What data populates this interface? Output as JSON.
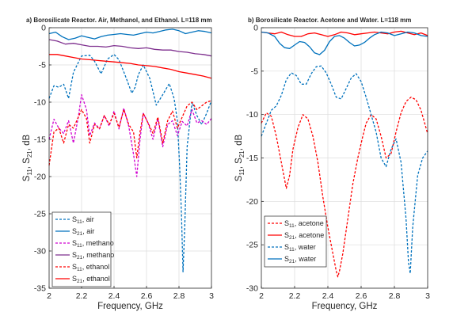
{
  "chart_data": [
    {
      "type": "line",
      "title": "a) Borosilicate Reactor. Air, Methanol, and Ethanol. L=118 mm",
      "xlabel": "Frequency, GHz",
      "ylabel_parts": [
        "S",
        "11",
        ", S",
        "21",
        ", dB"
      ],
      "xlim": [
        2,
        3
      ],
      "ylim": [
        -35,
        0
      ],
      "xticks": [
        2,
        2.2,
        2.4,
        2.6,
        2.8,
        3
      ],
      "xticklabels": [
        "2",
        "2.2",
        "2.4",
        "2.6",
        "2.8",
        "3"
      ],
      "yticks": [
        -35,
        -30,
        -25,
        -20,
        -15,
        -10,
        -5,
        0
      ],
      "yticklabels": [
        "-35",
        "-30",
        "-25",
        "-20",
        "-15",
        "-10",
        "-5",
        "0"
      ],
      "grid": true,
      "legend_position": "bottom-left",
      "series": [
        {
          "label": {
            "sym": "S",
            "sub": "11",
            "rest": ", air"
          },
          "color": "#0072BD",
          "dash": true,
          "x": [
            2.0,
            2.03,
            2.06,
            2.09,
            2.12,
            2.15,
            2.2,
            2.25,
            2.28,
            2.32,
            2.36,
            2.4,
            2.43,
            2.47,
            2.51,
            2.53,
            2.55,
            2.58,
            2.62,
            2.66,
            2.7,
            2.74,
            2.77,
            2.79,
            2.805,
            2.815,
            2.825,
            2.835,
            2.85,
            2.88,
            2.91,
            2.94,
            2.97,
            3.0
          ],
          "y": [
            -9.5,
            -7.8,
            -8,
            -7.6,
            -9.5,
            -6,
            -3.8,
            -3.7,
            -4.5,
            -6.2,
            -4.2,
            -3.6,
            -4.3,
            -6.5,
            -8.8,
            -8,
            -6.3,
            -5,
            -6.8,
            -10.4,
            -9,
            -7.5,
            -9.5,
            -12.5,
            -19,
            -25,
            -32.8,
            -27,
            -16,
            -10,
            -11.8,
            -13,
            -11.5,
            -9.8
          ]
        },
        {
          "label": {
            "sym": "S",
            "sub": "21",
            "rest": ", air"
          },
          "color": "#0072BD",
          "dash": false,
          "x": [
            2.0,
            2.04,
            2.08,
            2.12,
            2.16,
            2.2,
            2.24,
            2.28,
            2.32,
            2.36,
            2.4,
            2.44,
            2.48,
            2.52,
            2.56,
            2.6,
            2.64,
            2.68,
            2.72,
            2.76,
            2.8,
            2.84,
            2.88,
            2.92,
            2.96,
            3.0
          ],
          "y": [
            -0.8,
            -0.6,
            -1.2,
            -1.6,
            -1.4,
            -1.1,
            -1.3,
            -1.5,
            -1.2,
            -1.0,
            -0.9,
            -0.8,
            -0.9,
            -1.0,
            -0.8,
            -0.6,
            -0.7,
            -0.5,
            -0.3,
            -0.2,
            -0.4,
            -0.8,
            -0.6,
            -0.4,
            -0.5,
            -0.7
          ]
        },
        {
          "label": {
            "sym": "S",
            "sub": "11",
            "rest": ", methano"
          },
          "color": "#D000D0",
          "dash": true,
          "x": [
            2.0,
            2.03,
            2.06,
            2.09,
            2.12,
            2.15,
            2.18,
            2.2,
            2.23,
            2.25,
            2.28,
            2.31,
            2.34,
            2.37,
            2.4,
            2.43,
            2.46,
            2.49,
            2.52,
            2.54,
            2.56,
            2.58,
            2.61,
            2.64,
            2.67,
            2.7,
            2.73,
            2.76,
            2.79,
            2.82,
            2.85,
            2.88,
            2.91,
            2.94,
            2.97,
            3.0
          ],
          "y": [
            -15,
            -12.3,
            -13.5,
            -14.2,
            -12.5,
            -15.5,
            -12,
            -9,
            -11,
            -14.5,
            -12.8,
            -13.6,
            -11.8,
            -13.2,
            -11.2,
            -13.6,
            -10.8,
            -13.2,
            -17,
            -20,
            -15,
            -11.5,
            -12.8,
            -15,
            -12.2,
            -16,
            -13,
            -12.5,
            -14.5,
            -12.6,
            -13.2,
            -11,
            -12.8,
            -12.5,
            -13,
            -12.2
          ]
        },
        {
          "label": {
            "sym": "S",
            "sub": "21",
            "rest": ", methano"
          },
          "color": "#7E2F8E",
          "dash": false,
          "x": [
            2.0,
            2.05,
            2.1,
            2.15,
            2.2,
            2.25,
            2.3,
            2.35,
            2.4,
            2.45,
            2.5,
            2.55,
            2.6,
            2.65,
            2.7,
            2.75,
            2.8,
            2.85,
            2.9,
            2.95,
            3.0
          ],
          "y": [
            -1.6,
            -1.8,
            -2.2,
            -2.1,
            -2.3,
            -2.5,
            -2.5,
            -2.6,
            -2.4,
            -2.5,
            -2.7,
            -2.8,
            -2.7,
            -2.9,
            -3.0,
            -3.0,
            -3.2,
            -3.3,
            -3.5,
            -3.6,
            -3.8
          ]
        },
        {
          "label": {
            "sym": "S",
            "sub": "11",
            "rest": ", ethanol"
          },
          "color": "#FF0000",
          "dash": true,
          "x": [
            2.0,
            2.03,
            2.06,
            2.09,
            2.12,
            2.15,
            2.18,
            2.2,
            2.23,
            2.25,
            2.28,
            2.31,
            2.34,
            2.37,
            2.4,
            2.43,
            2.46,
            2.49,
            2.52,
            2.54,
            2.56,
            2.58,
            2.61,
            2.64,
            2.67,
            2.7,
            2.73,
            2.76,
            2.79,
            2.82,
            2.85,
            2.88,
            2.91,
            2.94,
            2.97,
            3.0
          ],
          "y": [
            -18.5,
            -14,
            -13.5,
            -15.5,
            -13,
            -13.5,
            -12,
            -11,
            -12.2,
            -15.5,
            -13,
            -13.6,
            -11.8,
            -13,
            -11.5,
            -13.4,
            -11,
            -13,
            -14,
            -17.5,
            -14,
            -11.5,
            -12.8,
            -14.2,
            -12,
            -15.5,
            -12.5,
            -11.2,
            -13.5,
            -12,
            -10.5,
            -10,
            -11,
            -10.5,
            -10,
            -9.8
          ]
        },
        {
          "label": {
            "sym": "S",
            "sub": "21",
            "rest": ", ethanol"
          },
          "color": "#FF0000",
          "dash": false,
          "x": [
            2.0,
            2.05,
            2.1,
            2.15,
            2.2,
            2.25,
            2.3,
            2.35,
            2.4,
            2.45,
            2.5,
            2.55,
            2.6,
            2.65,
            2.7,
            2.75,
            2.8,
            2.85,
            2.9,
            2.95,
            3.0
          ],
          "y": [
            -3.6,
            -3.6,
            -3.8,
            -4.0,
            -4.2,
            -4.3,
            -4.4,
            -4.5,
            -4.6,
            -4.7,
            -4.8,
            -5.0,
            -5.1,
            -5.2,
            -5.4,
            -5.6,
            -5.9,
            -6.1,
            -6.3,
            -6.5,
            -6.8
          ]
        }
      ]
    },
    {
      "type": "line",
      "title": "b) Borosilicate Reactor. Acetone and Water. L=118 mm",
      "xlabel": "Frequency, GHz",
      "ylabel_parts": [
        "S",
        "11",
        ", S",
        "21",
        ", dB"
      ],
      "xlim": [
        2,
        3
      ],
      "ylim": [
        -30,
        0
      ],
      "xticks": [
        2,
        2.2,
        2.4,
        2.6,
        2.8,
        3
      ],
      "xticklabels": [
        "2",
        "2.2",
        "2.4",
        "2.6",
        "2.8",
        "3"
      ],
      "yticks": [
        -30,
        -25,
        -20,
        -15,
        -10,
        -5,
        0
      ],
      "yticklabels": [
        "-30",
        "-25",
        "-20",
        "-15",
        "-10",
        "-5",
        "0"
      ],
      "grid": true,
      "legend_position": "bottom-left",
      "series": [
        {
          "label": {
            "sym": "S",
            "sub": "11",
            "rest": ", acetone"
          },
          "color": "#FF0000",
          "dash": true,
          "x": [
            2.0,
            2.03,
            2.06,
            2.09,
            2.12,
            2.15,
            2.17,
            2.19,
            2.22,
            2.25,
            2.28,
            2.31,
            2.34,
            2.37,
            2.4,
            2.43,
            2.45,
            2.46,
            2.47,
            2.49,
            2.52,
            2.55,
            2.58,
            2.61,
            2.63,
            2.66,
            2.69,
            2.72,
            2.75,
            2.78,
            2.81,
            2.84,
            2.87,
            2.9,
            2.93,
            2.96,
            3.0
          ],
          "y": [
            -11,
            -9.8,
            -10.2,
            -12.5,
            -15.5,
            -18.5,
            -17,
            -14,
            -11.5,
            -10,
            -10.5,
            -12.5,
            -15.5,
            -19.5,
            -23,
            -26,
            -28,
            -28.7,
            -28,
            -26,
            -22,
            -18,
            -15,
            -12.5,
            -11,
            -10,
            -10.5,
            -12.5,
            -15,
            -14.5,
            -12,
            -9.8,
            -8.5,
            -8,
            -8.3,
            -9.5,
            -12.2
          ]
        },
        {
          "label": {
            "sym": "S",
            "sub": "21",
            "rest": ", acetone"
          },
          "color": "#FF0000",
          "dash": false,
          "x": [
            2.0,
            2.04,
            2.08,
            2.12,
            2.16,
            2.2,
            2.24,
            2.28,
            2.32,
            2.36,
            2.4,
            2.44,
            2.48,
            2.52,
            2.56,
            2.6,
            2.64,
            2.68,
            2.72,
            2.76,
            2.8,
            2.84,
            2.88,
            2.92,
            2.96,
            3.0
          ],
          "y": [
            -0.5,
            -0.6,
            -0.7,
            -0.5,
            -0.8,
            -1.0,
            -1.0,
            -0.7,
            -0.6,
            -0.8,
            -1.0,
            -0.8,
            -0.5,
            -0.6,
            -0.8,
            -0.7,
            -0.6,
            -0.5,
            -0.6,
            -0.7,
            -0.5,
            -0.4,
            -0.6,
            -0.8,
            -0.6,
            -0.9
          ]
        },
        {
          "label": {
            "sym": "S",
            "sub": "11",
            "rest": ", water"
          },
          "color": "#0072BD",
          "dash": true,
          "x": [
            2.0,
            2.03,
            2.06,
            2.09,
            2.12,
            2.15,
            2.18,
            2.21,
            2.24,
            2.27,
            2.3,
            2.33,
            2.36,
            2.39,
            2.42,
            2.45,
            2.48,
            2.51,
            2.54,
            2.57,
            2.6,
            2.63,
            2.66,
            2.69,
            2.72,
            2.75,
            2.78,
            2.81,
            2.84,
            2.87,
            2.885,
            2.895,
            2.91,
            2.94,
            2.97,
            3.0
          ],
          "y": [
            -12.5,
            -11,
            -9.5,
            -9,
            -7.8,
            -6,
            -5.2,
            -5.5,
            -6.5,
            -6.5,
            -5.3,
            -4.5,
            -4.4,
            -5.2,
            -6.5,
            -8,
            -8.2,
            -7,
            -5.8,
            -5.3,
            -6.2,
            -8,
            -10,
            -12,
            -15,
            -16,
            -14,
            -12.8,
            -15.5,
            -22,
            -27,
            -28.3,
            -23,
            -17,
            -15,
            -14.2
          ]
        },
        {
          "label": {
            "sym": "S",
            "sub": "21",
            "rest": ", water"
          },
          "color": "#0072BD",
          "dash": false,
          "x": [
            2.0,
            2.04,
            2.08,
            2.11,
            2.14,
            2.17,
            2.2,
            2.23,
            2.26,
            2.29,
            2.32,
            2.35,
            2.38,
            2.41,
            2.44,
            2.47,
            2.5,
            2.53,
            2.56,
            2.59,
            2.62,
            2.65,
            2.68,
            2.72,
            2.76,
            2.8,
            2.84,
            2.88,
            2.92,
            2.96,
            3.0
          ],
          "y": [
            -0.5,
            -0.6,
            -1.0,
            -1.8,
            -2.3,
            -2.4,
            -2.0,
            -1.6,
            -1.7,
            -2.2,
            -2.9,
            -3.1,
            -2.6,
            -1.6,
            -1.0,
            -0.9,
            -1.2,
            -1.7,
            -2.1,
            -2.0,
            -1.7,
            -1.2,
            -0.8,
            -0.5,
            -0.6,
            -0.9,
            -0.7,
            -0.5,
            -0.6,
            -0.9,
            -1.0
          ]
        }
      ]
    }
  ]
}
